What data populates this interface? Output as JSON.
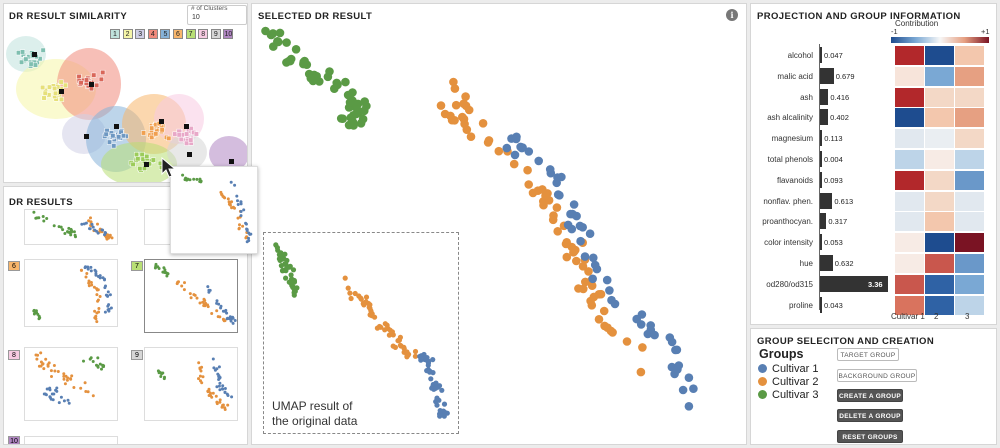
{
  "similarity": {
    "title": "DR RESULT SIMILARITY",
    "clusters_label": "# of Clusters",
    "clusters_value": "10",
    "clusters": [
      {
        "id": "1",
        "color": "#bfe2dc"
      },
      {
        "id": "2",
        "color": "#f5f5a8"
      },
      {
        "id": "3",
        "color": "#cfcfe6"
      },
      {
        "id": "4",
        "color": "#f08a7c"
      },
      {
        "id": "5",
        "color": "#86b2d8"
      },
      {
        "id": "6",
        "color": "#f8b66c"
      },
      {
        "id": "7",
        "color": "#b8df75"
      },
      {
        "id": "8",
        "color": "#f7cbe2"
      },
      {
        "id": "9",
        "color": "#d6d6d6"
      },
      {
        "id": "10",
        "color": "#b086c2"
      }
    ]
  },
  "results": {
    "title": "DR RESULTS",
    "badges": [
      "6",
      "7",
      "8",
      "9",
      "10"
    ]
  },
  "selected": {
    "title": "SELECTED DR RESULT",
    "info_icon": "i",
    "annotation_line1": "UMAP result of",
    "annotation_line2": "the original data"
  },
  "projection": {
    "title": "PROJECTION AND GROUP INFORMATION",
    "contribution_label": "Contribution",
    "scale_min": "-1",
    "scale_max": "+1",
    "columns": [
      "Cultivar 1",
      "2",
      "3"
    ],
    "features": [
      {
        "name": "alcohol",
        "value": "0.047",
        "bar": 0.047,
        "cells": [
          "#b2282b",
          "#1e4c8f",
          "#f3c7ad"
        ]
      },
      {
        "name": "malic acid",
        "value": "0.679",
        "bar": 0.679,
        "cells": [
          "#f7e4da",
          "#7aa8d4",
          "#e6a082"
        ]
      },
      {
        "name": "ash",
        "value": "0.416",
        "bar": 0.416,
        "cells": [
          "#b2282b",
          "#f3d8c6",
          "#f3d8c6"
        ]
      },
      {
        "name": "ash alcalinity",
        "value": "0.402",
        "bar": 0.402,
        "cells": [
          "#1e4c8f",
          "#f3c7ad",
          "#e6a082"
        ]
      },
      {
        "name": "magnesium",
        "value": "0.113",
        "bar": 0.113,
        "cells": [
          "#e1e8ef",
          "#eaeef2",
          "#f3d8c6"
        ]
      },
      {
        "name": "total phenols",
        "value": "0.004",
        "bar": 0.004,
        "cells": [
          "#bdd4e8",
          "#f7ebe5",
          "#bdd4e8"
        ]
      },
      {
        "name": "flavanoids",
        "value": "0.093",
        "bar": 0.093,
        "cells": [
          "#b2282b",
          "#f3d8c6",
          "#6a98c9"
        ]
      },
      {
        "name": "nonflav. phen.",
        "value": "0.613",
        "bar": 0.613,
        "cells": [
          "#e1e8ef",
          "#f3d8c6",
          "#e1e8ef"
        ]
      },
      {
        "name": "proanthocyan.",
        "value": "0.317",
        "bar": 0.317,
        "cells": [
          "#e1e8ef",
          "#f3c7ad",
          "#e1e8ef"
        ]
      },
      {
        "name": "color intensity",
        "value": "0.053",
        "bar": 0.053,
        "cells": [
          "#f7ebe5",
          "#1e4c8f",
          "#7a1323"
        ]
      },
      {
        "name": "hue",
        "value": "0.632",
        "bar": 0.632,
        "cells": [
          "#f7ebe5",
          "#c9574d",
          "#6a98c9"
        ]
      },
      {
        "name": "od280/od315",
        "value": "3.36",
        "bar": 3.36,
        "cells": [
          "#c9574d",
          "#2f62a5",
          "#7aa8d4"
        ]
      },
      {
        "name": "proline",
        "value": "0.043",
        "bar": 0.043,
        "cells": [
          "#d9735e",
          "#2f62a5",
          "#bdd4e8"
        ]
      }
    ]
  },
  "groups": {
    "title": "GROUP SELECITON AND CREATION",
    "heading": "Groups",
    "items": [
      {
        "label": "Cultivar 1",
        "color": "#587fb3"
      },
      {
        "label": "Cultivar 2",
        "color": "#e4913e"
      },
      {
        "label": "Cultivar 3",
        "color": "#5a9a45"
      }
    ],
    "buttons": {
      "target": "TARGET GROUP",
      "background": "BACKGROUND GROUP",
      "create": "CREATE A GROUP",
      "delete": "DELETE A GROUP",
      "reset": "RESET GROUPS"
    }
  }
}
